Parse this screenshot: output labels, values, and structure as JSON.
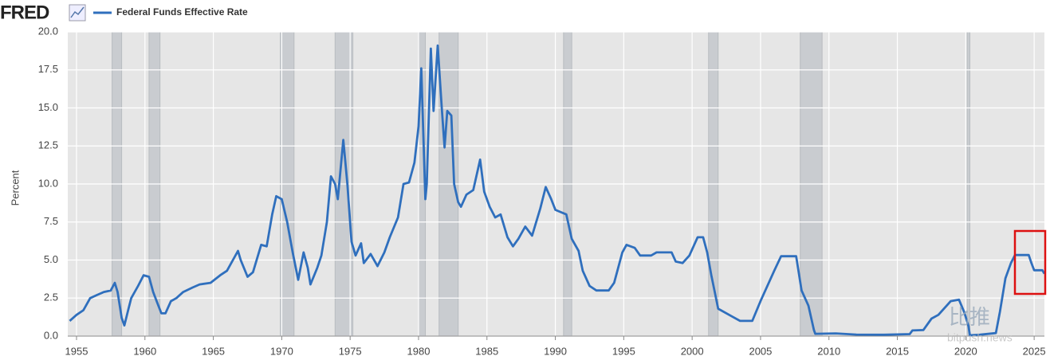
{
  "chart_data": {
    "type": "line",
    "logo": "FRED",
    "y_label": "Percent",
    "watermark": [
      "比推",
      "bitpush.news"
    ],
    "x": [
      1954.5,
      1955.0,
      1955.5,
      1956.0,
      1956.5,
      1957.0,
      1957.5,
      1957.8,
      1958.0,
      1958.3,
      1958.5,
      1958.8,
      1959.0,
      1959.5,
      1959.9,
      1960.3,
      1960.6,
      1960.9,
      1961.2,
      1961.5,
      1961.9,
      1962.3,
      1962.8,
      1963.5,
      1964.0,
      1964.8,
      1965.5,
      1966.0,
      1966.8,
      1967.0,
      1967.5,
      1967.9,
      1968.5,
      1968.9,
      1969.3,
      1969.6,
      1970.0,
      1970.4,
      1970.8,
      1971.2,
      1971.6,
      1971.9,
      1972.1,
      1972.6,
      1972.9,
      1973.3,
      1973.6,
      1973.9,
      1974.1,
      1974.5,
      1974.8,
      1975.1,
      1975.4,
      1975.8,
      1976.0,
      1976.5,
      1977.0,
      1977.5,
      1977.9,
      1978.5,
      1978.9,
      1979.3,
      1979.7,
      1980.0,
      1980.2,
      1980.5,
      1980.6,
      1980.9,
      1981.1,
      1981.4,
      1981.7,
      1981.9,
      1982.1,
      1982.4,
      1982.6,
      1982.9,
      1983.1,
      1983.5,
      1984.0,
      1984.5,
      1984.8,
      1985.2,
      1985.6,
      1986.0,
      1986.5,
      1986.9,
      1987.3,
      1987.8,
      1988.3,
      1988.9,
      1989.3,
      1989.7,
      1990.0,
      1990.8,
      1991.2,
      1991.7,
      1992.0,
      1992.5,
      1993.0,
      1993.9,
      1994.3,
      1994.9,
      1995.2,
      1995.8,
      1996.2,
      1997.0,
      1997.4,
      1998.5,
      1998.8,
      1999.3,
      1999.8,
      2000.4,
      2000.8,
      2001.1,
      2001.4,
      2001.9,
      2002.9,
      2003.5,
      2004.4,
      2005.0,
      2006.0,
      2006.5,
      2007.6,
      2008.0,
      2008.5,
      2008.9,
      2009.0,
      2010.5,
      2012.0,
      2014.0,
      2015.9,
      2016.1,
      2016.9,
      2017.5,
      2018.0,
      2018.9,
      2019.5,
      2019.9,
      2020.2,
      2020.3,
      2021.0,
      2022.2,
      2022.5,
      2022.9,
      2023.3,
      2023.6,
      2024.6,
      2024.8,
      2025.0,
      2025.6,
      2025.75
    ],
    "series": [
      {
        "name": "Federal Funds Effective Rate",
        "color": "#2f6fbd",
        "values": [
          1.0,
          1.4,
          1.7,
          2.5,
          2.7,
          2.9,
          3.0,
          3.5,
          2.9,
          1.2,
          0.7,
          1.8,
          2.5,
          3.3,
          4.0,
          3.9,
          2.9,
          2.2,
          1.5,
          1.5,
          2.3,
          2.5,
          2.9,
          3.2,
          3.4,
          3.5,
          4.0,
          4.3,
          5.6,
          5.0,
          3.9,
          4.2,
          6.0,
          5.9,
          8.0,
          9.2,
          9.0,
          7.5,
          5.5,
          3.7,
          5.5,
          4.5,
          3.4,
          4.5,
          5.3,
          7.5,
          10.5,
          10.0,
          9.0,
          12.9,
          10.0,
          6.2,
          5.3,
          6.1,
          4.8,
          5.4,
          4.6,
          5.5,
          6.5,
          7.8,
          10.0,
          10.1,
          11.4,
          13.8,
          17.6,
          9.0,
          10.0,
          18.9,
          14.8,
          19.1,
          15.0,
          12.4,
          14.8,
          14.5,
          10.0,
          8.8,
          8.5,
          9.3,
          9.6,
          11.6,
          9.5,
          8.5,
          7.8,
          8.0,
          6.5,
          5.9,
          6.4,
          7.2,
          6.6,
          8.4,
          9.8,
          9.0,
          8.3,
          8.0,
          6.4,
          5.6,
          4.3,
          3.3,
          3.0,
          3.0,
          3.5,
          5.5,
          6.0,
          5.8,
          5.3,
          5.3,
          5.5,
          5.5,
          4.9,
          4.8,
          5.3,
          6.5,
          6.5,
          5.5,
          4.0,
          1.8,
          1.3,
          1.0,
          1.0,
          2.3,
          4.3,
          5.25,
          5.25,
          3.0,
          2.0,
          0.4,
          0.15,
          0.18,
          0.1,
          0.09,
          0.13,
          0.37,
          0.4,
          1.15,
          1.4,
          2.3,
          2.4,
          1.55,
          0.65,
          0.05,
          0.09,
          0.2,
          1.6,
          3.8,
          4.8,
          5.33,
          5.33,
          4.8,
          4.33,
          4.33,
          4.1
        ]
      }
    ],
    "recessions": [
      [
        1957.6,
        1958.3
      ],
      [
        1960.3,
        1961.1
      ],
      [
        1969.9,
        1970.9
      ],
      [
        1973.9,
        1975.2
      ],
      [
        1980.0,
        1980.5
      ],
      [
        1981.5,
        1982.9
      ],
      [
        1990.6,
        1991.2
      ],
      [
        2001.2,
        2001.9
      ],
      [
        2007.9,
        2009.5
      ],
      [
        2020.1,
        2020.3
      ]
    ],
    "xlim": [
      1954.36,
      2025.75
    ],
    "xticks": [
      1955,
      1960,
      1965,
      1970,
      1975,
      1980,
      1985,
      1990,
      1995,
      2000,
      2005,
      2010,
      2015,
      2020,
      2025
    ],
    "ylim": [
      0,
      20
    ],
    "yticks": [
      {
        "value": 0,
        "label": "0.0"
      },
      {
        "value": 2.5,
        "label": "2.5"
      },
      {
        "value": 5,
        "label": "5.0"
      },
      {
        "value": 7.5,
        "label": "7.5"
      },
      {
        "value": 10,
        "label": "10.0"
      },
      {
        "value": 12.5,
        "label": "12.5"
      },
      {
        "value": 15,
        "label": "15.0"
      },
      {
        "value": 17.5,
        "label": "17.5"
      },
      {
        "value": 20,
        "label": "20.0"
      }
    ],
    "grid": true
  }
}
